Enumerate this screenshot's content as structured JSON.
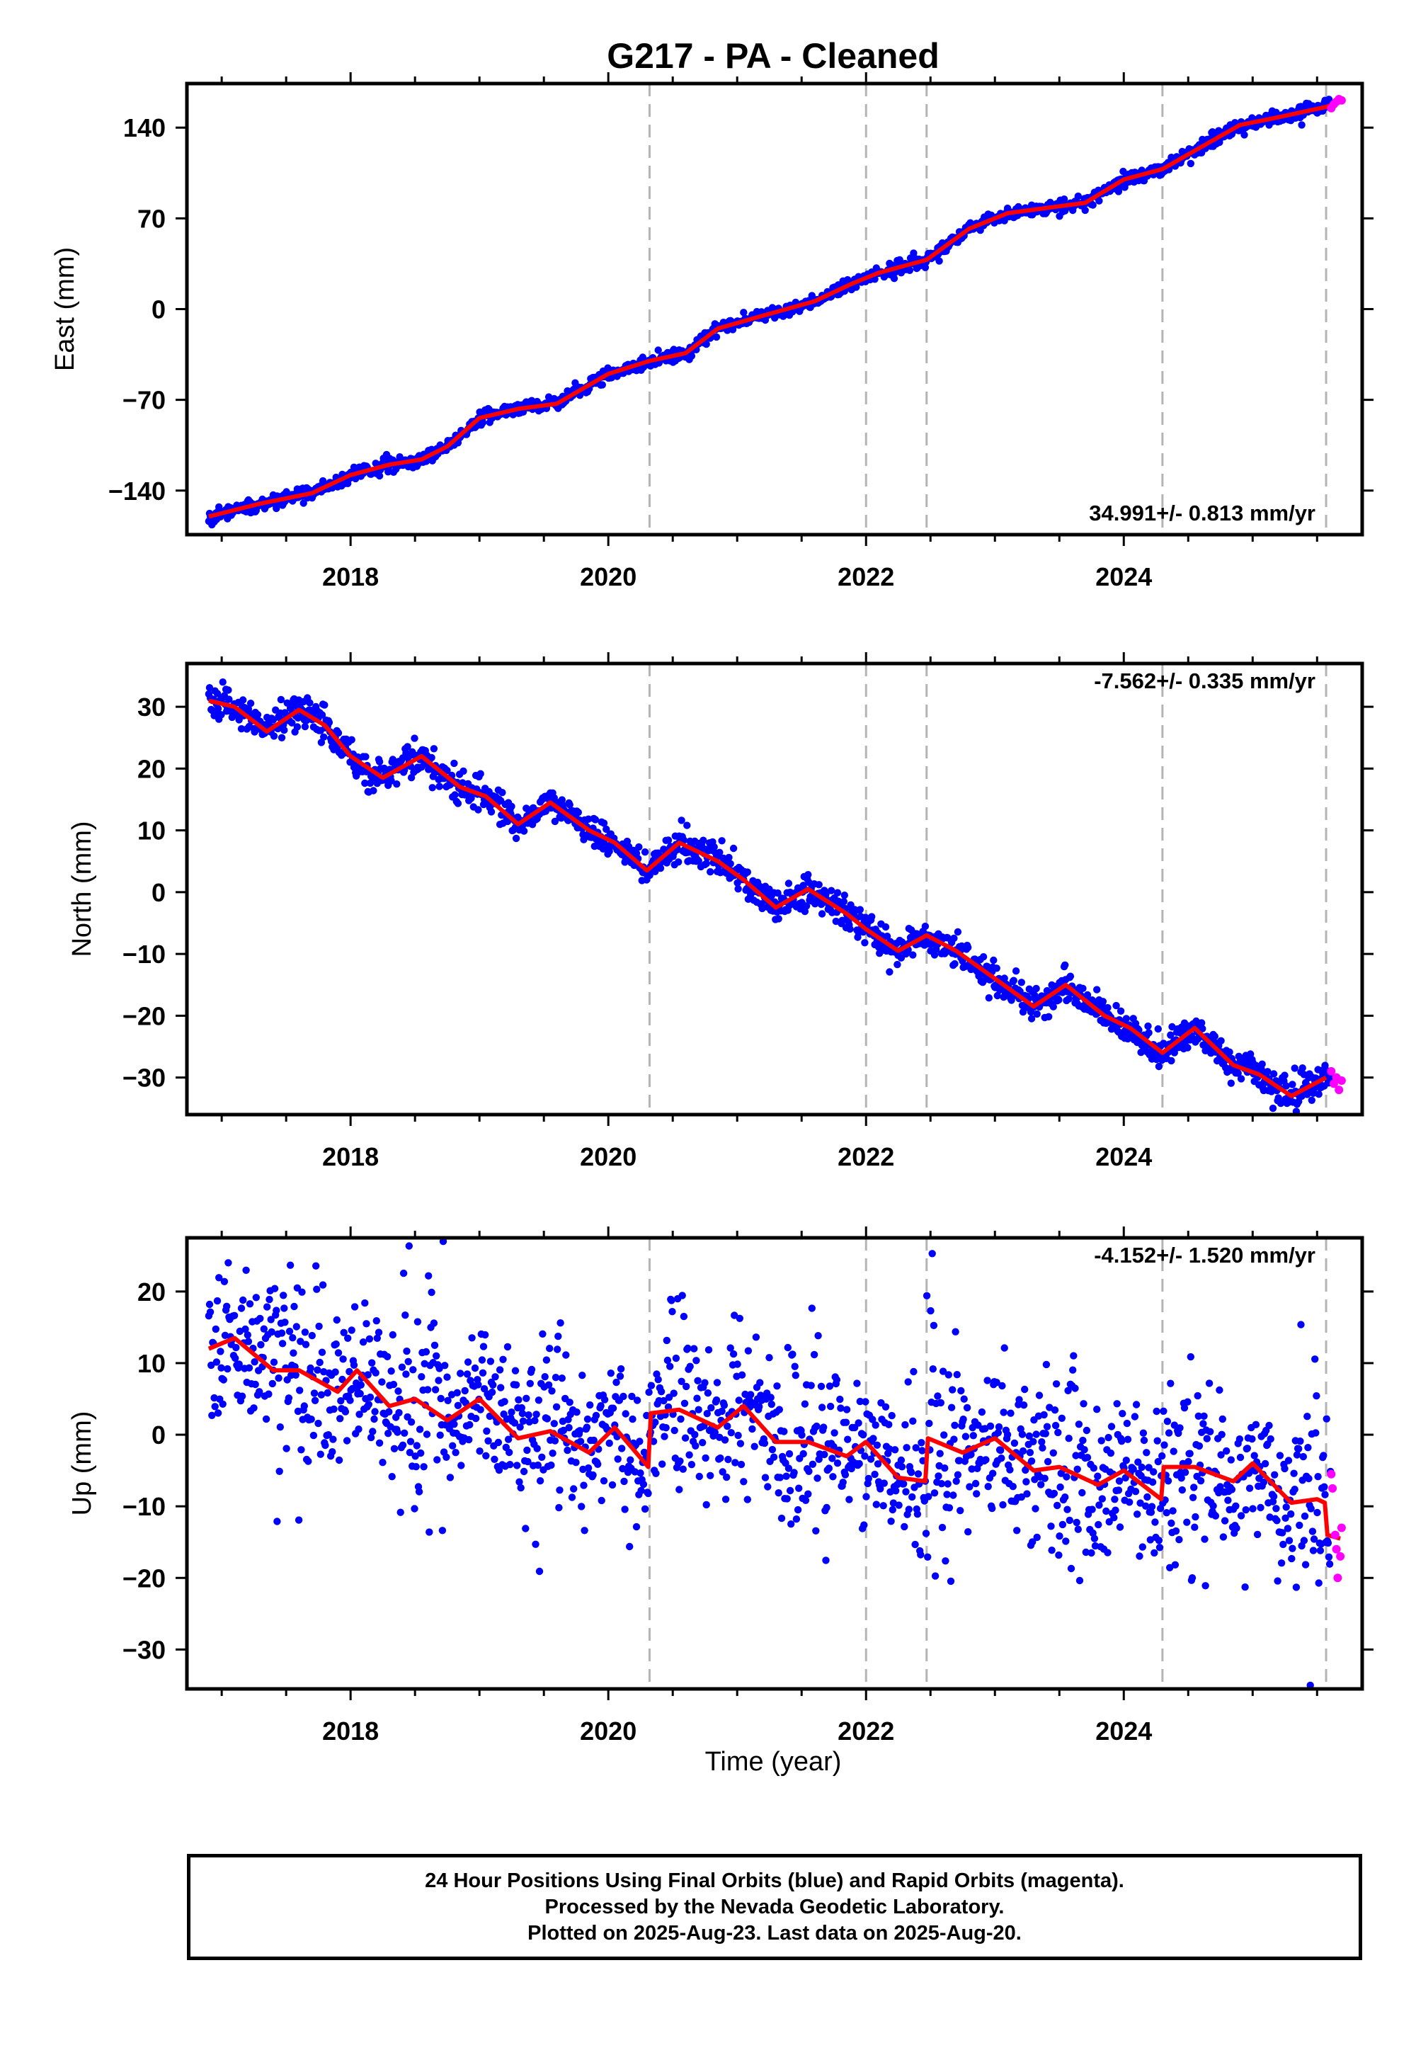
{
  "title": "G217  - PA - Cleaned",
  "xlabel": "Time (year)",
  "colors": {
    "final_orbits": "#0000ff",
    "rapid_orbits": "#ff00ff",
    "model_fit": "#ff0000",
    "event_lines": "#b4b4b4"
  },
  "footer": {
    "line1": "24 Hour Positions Using Final Orbits (blue) and Rapid Orbits (magenta).",
    "line2": "Processed by the Nevada Geodetic Laboratory.",
    "line3": "Plotted on 2025-Aug-23. Last data on 2025-Aug-20."
  },
  "chart_data": [
    {
      "type": "scatter",
      "panel": "east",
      "ylabel": "East (mm)",
      "rate_label": "34.991+/- 0.813 mm/yr",
      "rate_position": "bottom-right",
      "xlim": [
        2016.73,
        2025.85
      ],
      "ylim": [
        -174,
        174
      ],
      "xticks": [
        2018,
        2020,
        2022,
        2024
      ],
      "yticks": [
        -140,
        -70,
        0,
        70,
        140
      ],
      "event_lines": [
        2020.32,
        2022.0,
        2022.47,
        2024.3,
        2025.57
      ],
      "trend": {
        "x": [
          2016.9,
          2017.3,
          2017.7,
          2018.0,
          2018.3,
          2018.55,
          2018.75,
          2019.0,
          2019.3,
          2019.6,
          2020.0,
          2020.32,
          2020.6,
          2020.85,
          2021.2,
          2021.6,
          2021.9,
          2022.1,
          2022.47,
          2022.8,
          2023.1,
          2023.4,
          2023.7,
          2024.0,
          2024.3,
          2024.6,
          2024.9,
          2025.2,
          2025.57,
          2025.68
        ],
        "y": [
          -160,
          -150,
          -142,
          -128,
          -120,
          -116,
          -106,
          -84,
          -77,
          -73,
          -50,
          -40,
          -34,
          -15,
          -5,
          6,
          20,
          28,
          38,
          62,
          74,
          78,
          82,
          100,
          108,
          125,
          142,
          148,
          156,
          160
        ]
      },
      "rapid": {
        "x": [
          2025.61,
          2025.63,
          2025.65,
          2025.67,
          2025.69
        ],
        "y": [
          155,
          158,
          160,
          162,
          161
        ]
      }
    },
    {
      "type": "scatter",
      "panel": "north",
      "ylabel": "North (mm)",
      "rate_label": "-7.562+/- 0.335 mm/yr",
      "rate_position": "top-right",
      "xlim": [
        2016.73,
        2025.85
      ],
      "ylim": [
        -36,
        37
      ],
      "xticks": [
        2018,
        2020,
        2022,
        2024
      ],
      "yticks": [
        -30,
        -20,
        -10,
        0,
        10,
        20,
        30
      ],
      "event_lines": [
        2020.32,
        2022.0,
        2022.47,
        2024.3,
        2025.57
      ],
      "trend": {
        "x": [
          2016.9,
          2017.1,
          2017.35,
          2017.6,
          2017.8,
          2018.0,
          2018.25,
          2018.55,
          2018.85,
          2019.05,
          2019.3,
          2019.55,
          2019.85,
          2020.05,
          2020.3,
          2020.55,
          2020.85,
          2021.05,
          2021.3,
          2021.55,
          2021.85,
          2022.0,
          2022.25,
          2022.47,
          2022.7,
          2023.0,
          2023.3,
          2023.55,
          2023.85,
          2024.05,
          2024.3,
          2024.55,
          2024.85,
          2025.05,
          2025.3,
          2025.57
        ],
        "y": [
          31,
          30,
          26,
          29.5,
          27,
          22,
          18.5,
          22,
          17,
          15.5,
          11,
          14.5,
          10,
          8,
          3.5,
          8,
          5,
          2,
          -2.5,
          0.5,
          -3.5,
          -6,
          -9.5,
          -7,
          -9.5,
          -14,
          -18.5,
          -15,
          -20,
          -22,
          -26,
          -22,
          -28,
          -29.5,
          -33,
          -30
        ]
      },
      "rapid": {
        "x": [
          2025.61,
          2025.63,
          2025.65,
          2025.67,
          2025.69
        ],
        "y": [
          -29,
          -31,
          -30,
          -32,
          -30.5
        ]
      }
    },
    {
      "type": "scatter",
      "panel": "up",
      "ylabel": "Up (mm)",
      "rate_label": "-4.152+/- 1.520 mm/yr",
      "rate_position": "top-right",
      "xlim": [
        2016.73,
        2025.85
      ],
      "ylim": [
        -35.5,
        27.5
      ],
      "xticks": [
        2018,
        2020,
        2022,
        2024
      ],
      "yticks": [
        -30,
        -20,
        -10,
        0,
        10,
        20
      ],
      "event_lines": [
        2020.32,
        2022.0,
        2022.47,
        2024.3,
        2025.57
      ],
      "trend": {
        "x": [
          2016.9,
          2017.1,
          2017.4,
          2017.6,
          2017.9,
          2018.05,
          2018.3,
          2018.5,
          2018.75,
          2019.0,
          2019.3,
          2019.55,
          2019.85,
          2020.05,
          2020.31,
          2020.33,
          2020.55,
          2020.85,
          2021.05,
          2021.3,
          2021.55,
          2021.85,
          2022.0,
          2022.25,
          2022.46,
          2022.48,
          2022.75,
          2023.0,
          2023.3,
          2023.5,
          2023.8,
          2024.0,
          2024.29,
          2024.31,
          2024.55,
          2024.85,
          2025.0,
          2025.3,
          2025.5,
          2025.56,
          2025.58,
          2025.68
        ],
        "y": [
          12,
          13.5,
          9,
          9,
          6,
          9,
          4,
          5,
          2,
          5,
          -0.5,
          0.5,
          -2.5,
          1,
          -4.5,
          3,
          3.5,
          1,
          4,
          -1,
          -1,
          -3,
          -1,
          -6,
          -6.5,
          -0.5,
          -2.5,
          -0.5,
          -5,
          -4.5,
          -7,
          -5,
          -9,
          -4.5,
          -4.5,
          -6.5,
          -4,
          -9.5,
          -9,
          -9.5,
          -14,
          -14.5
        ]
      },
      "rapid": {
        "x": [
          2025.61,
          2025.62,
          2025.64,
          2025.65,
          2025.66,
          2025.68,
          2025.69
        ],
        "y": [
          -5.5,
          -7.5,
          -14,
          -16,
          -20,
          -17,
          -13
        ]
      }
    }
  ]
}
